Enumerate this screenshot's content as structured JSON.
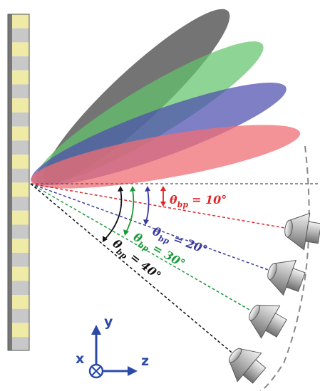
{
  "colors": {
    "red": "#e0262b",
    "blue": "#3a3a9e",
    "green": "#1a9a3a",
    "black": "#111111",
    "axis": "#2b4aa8",
    "lobe_gray": "#5c5c5c",
    "lobe_green": "#62c36b",
    "lobe_blue": "#4e4eb0",
    "lobe_red": "#ef6d74",
    "panel_yellow": "#efeaa6",
    "panel_gray": "#c8c8c8"
  },
  "beams": [
    {
      "name": "beam-10",
      "theta": "θ",
      "sub": "bp",
      "value": "= 10°",
      "color": "red"
    },
    {
      "name": "beam-20",
      "theta": "θ",
      "sub": "bp",
      "value": "= 20°",
      "color": "blue"
    },
    {
      "name": "beam-30",
      "theta": "θ",
      "sub": "bp",
      "value": "= 30°",
      "color": "green"
    },
    {
      "name": "beam-40",
      "theta": "θ",
      "sub": "bp",
      "value": "= 40°",
      "color": "black"
    }
  ],
  "axes": {
    "y": "y",
    "x": "x",
    "z": "z"
  },
  "icons": [
    "horn-antenna-icon",
    "cross-circle-icon"
  ]
}
